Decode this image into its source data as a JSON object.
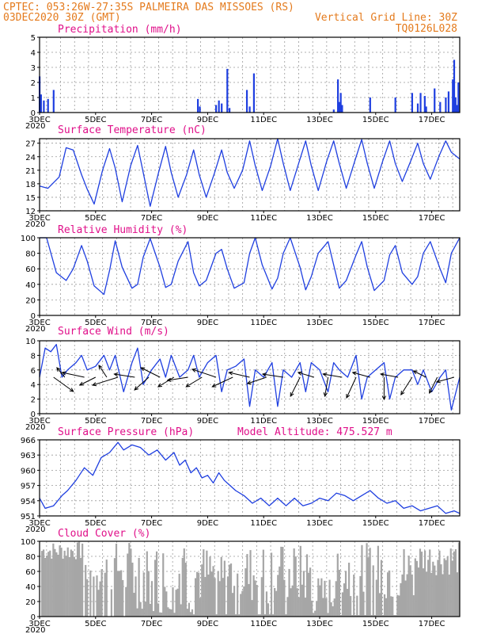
{
  "header": {
    "line1_left": "CPTEC:  053:26W-27:35S  PALMEIRA DAS MISSOES (RS)",
    "line2_left": "03DEC2020 30Z (GMT)",
    "line2_right": "Vertical Grid Line: 30Z",
    "line3_right": "TQ0126L028"
  },
  "colors": {
    "header": "#e47a1c",
    "title": "#e0108a",
    "line": "#1f3fe0",
    "cloud": "#a6a6a6",
    "arrow": "#000000"
  },
  "x_axis": {
    "start": "03DEC2020",
    "end": "18DEC2020",
    "tick_labels": [
      "3DEC",
      "5DEC",
      "7DEC",
      "9DEC",
      "11DEC",
      "13DEC",
      "15DEC",
      "17DEC"
    ],
    "tick_days": [
      3,
      5,
      7,
      9,
      11,
      13,
      15,
      17
    ],
    "year_label": "2020"
  },
  "chart_data": [
    {
      "type": "bar",
      "title": "Precipitation (mm/h)",
      "ylim": [
        0,
        5
      ],
      "yticks": [
        0,
        1,
        2,
        3,
        4,
        5
      ],
      "x_days": [
        3.0,
        3.05,
        3.15,
        3.3,
        3.5,
        8.65,
        8.72,
        9.3,
        9.4,
        9.5,
        9.7,
        9.78,
        10.4,
        10.5,
        10.65,
        13.5,
        13.65,
        13.7,
        13.75,
        13.8,
        14.8,
        15.7,
        16.3,
        16.5,
        16.6,
        16.75,
        16.8,
        17.1,
        17.3,
        17.5,
        17.6,
        17.75,
        17.8,
        17.85,
        17.9,
        17.95
      ],
      "values": [
        2.4,
        1.2,
        0.8,
        0.9,
        1.5,
        0.9,
        0.4,
        0.5,
        0.8,
        0.6,
        2.9,
        0.3,
        1.5,
        0.4,
        2.6,
        0.2,
        2.2,
        0.7,
        1.3,
        0.5,
        1.0,
        1.0,
        1.3,
        0.6,
        1.3,
        1.1,
        0.4,
        1.6,
        0.7,
        1.0,
        1.4,
        2.2,
        3.5,
        1.0,
        0.5,
        2.0
      ]
    },
    {
      "type": "line",
      "title": "Surface Temperature (nC)",
      "ylim": [
        12,
        28
      ],
      "yticks": [
        12,
        15,
        18,
        21,
        24,
        27
      ],
      "x_days": [
        3.0,
        3.3,
        3.7,
        3.95,
        4.2,
        4.5,
        4.7,
        4.95,
        5.25,
        5.5,
        5.7,
        5.95,
        6.25,
        6.5,
        6.7,
        6.95,
        7.25,
        7.5,
        7.7,
        7.95,
        8.25,
        8.5,
        8.7,
        8.95,
        9.25,
        9.5,
        9.7,
        9.95,
        10.25,
        10.5,
        10.7,
        10.95,
        11.25,
        11.5,
        11.7,
        11.95,
        12.25,
        12.5,
        12.7,
        12.95,
        13.25,
        13.5,
        13.7,
        13.95,
        14.25,
        14.5,
        14.7,
        14.95,
        15.25,
        15.5,
        15.7,
        15.95,
        16.25,
        16.5,
        16.7,
        16.95,
        17.25,
        17.5,
        17.7,
        18.0
      ],
      "values": [
        17.5,
        17.0,
        19.5,
        26.0,
        25.5,
        20.0,
        16.8,
        13.5,
        21.0,
        25.8,
        21.5,
        14.0,
        22.0,
        26.5,
        20.5,
        13.0,
        20.5,
        26.3,
        20.5,
        15.0,
        20.0,
        25.5,
        20.0,
        15.0,
        20.5,
        25.5,
        20.5,
        17.0,
        21.0,
        27.5,
        22.0,
        16.5,
        22.0,
        28.0,
        22.5,
        16.5,
        22.5,
        27.5,
        22.0,
        16.5,
        23.0,
        27.5,
        22.5,
        17.0,
        23.0,
        27.8,
        22.5,
        17.0,
        23.0,
        27.5,
        22.5,
        18.5,
        23.0,
        27.0,
        22.5,
        19.0,
        24.0,
        27.5,
        25.0,
        23.5
      ]
    },
    {
      "type": "line",
      "title": "Relative Humidity (%)",
      "ylim": [
        0,
        100
      ],
      "yticks": [
        0,
        20,
        40,
        60,
        80,
        100
      ],
      "x_days": [
        3.0,
        3.25,
        3.6,
        3.95,
        4.2,
        4.5,
        4.7,
        4.95,
        5.3,
        5.5,
        5.7,
        5.95,
        6.3,
        6.5,
        6.7,
        6.95,
        7.3,
        7.5,
        7.7,
        7.95,
        8.3,
        8.5,
        8.7,
        8.95,
        9.3,
        9.5,
        9.7,
        9.95,
        10.3,
        10.5,
        10.7,
        10.95,
        11.3,
        11.5,
        11.7,
        11.95,
        12.3,
        12.5,
        12.7,
        12.95,
        13.3,
        13.5,
        13.7,
        13.95,
        14.3,
        14.5,
        14.7,
        14.95,
        15.3,
        15.5,
        15.7,
        15.95,
        16.3,
        16.5,
        16.7,
        16.95,
        17.3,
        17.5,
        17.7,
        18.0
      ],
      "values": [
        100,
        100,
        55,
        45,
        60,
        90,
        70,
        38,
        27,
        58,
        96,
        62,
        35,
        40,
        75,
        99,
        62,
        36,
        40,
        70,
        95,
        55,
        38,
        45,
        80,
        85,
        60,
        35,
        42,
        80,
        100,
        65,
        34,
        48,
        80,
        100,
        62,
        33,
        50,
        80,
        95,
        65,
        35,
        45,
        78,
        95,
        62,
        32,
        45,
        78,
        90,
        55,
        40,
        50,
        80,
        95,
        60,
        42,
        80,
        100
      ]
    },
    {
      "type": "line",
      "title": "Surface Wind (m/s)",
      "ylim": [
        0,
        10
      ],
      "yticks": [
        0,
        2,
        4,
        6,
        8,
        10
      ],
      "x_days": [
        3.0,
        3.2,
        3.4,
        3.6,
        3.8,
        4.0,
        4.3,
        4.5,
        4.7,
        5.0,
        5.3,
        5.5,
        5.7,
        6.0,
        6.3,
        6.5,
        6.7,
        7.0,
        7.3,
        7.5,
        7.7,
        8.0,
        8.3,
        8.5,
        8.7,
        9.0,
        9.3,
        9.5,
        9.7,
        10.0,
        10.3,
        10.5,
        10.7,
        11.0,
        11.3,
        11.5,
        11.7,
        12.0,
        12.3,
        12.5,
        12.7,
        13.0,
        13.3,
        13.5,
        13.7,
        14.0,
        14.3,
        14.5,
        14.7,
        15.0,
        15.3,
        15.5,
        15.7,
        16.0,
        16.3,
        16.5,
        16.7,
        17.0,
        17.3,
        17.5,
        17.7,
        18.0
      ],
      "values": [
        5,
        9,
        8.5,
        9.5,
        5,
        6,
        7,
        8,
        6,
        6.5,
        8,
        6,
        8,
        3,
        7,
        9,
        4,
        6,
        7.5,
        5,
        8,
        5,
        6,
        8,
        5,
        7,
        8,
        3,
        6,
        6.5,
        7.5,
        1,
        6,
        5,
        7,
        1,
        6,
        5,
        7,
        3,
        7,
        6,
        3,
        7,
        6,
        5,
        8,
        2,
        5,
        6,
        7,
        2,
        5,
        6,
        6,
        4,
        6,
        3,
        5,
        6,
        0.5,
        5
      ],
      "arrows": [
        {
          "day": 3.5,
          "dx": 25,
          "dy": 18
        },
        {
          "day": 3.9,
          "dx": -10,
          "dy": -12
        },
        {
          "day": 4.6,
          "dx": -28,
          "dy": -6
        },
        {
          "day": 5.0,
          "dx": -20,
          "dy": 10
        },
        {
          "day": 5.4,
          "dx": -10,
          "dy": -15
        },
        {
          "day": 5.8,
          "dx": -32,
          "dy": 10
        },
        {
          "day": 6.4,
          "dx": -26,
          "dy": -4
        },
        {
          "day": 6.9,
          "dx": -18,
          "dy": 16
        },
        {
          "day": 7.3,
          "dx": -24,
          "dy": -12
        },
        {
          "day": 7.8,
          "dx": -20,
          "dy": 12
        },
        {
          "day": 8.3,
          "dx": -26,
          "dy": 4
        },
        {
          "day": 8.8,
          "dx": -20,
          "dy": 12
        },
        {
          "day": 9.3,
          "dx": -30,
          "dy": -10
        },
        {
          "day": 9.9,
          "dx": -26,
          "dy": 12
        },
        {
          "day": 10.5,
          "dx": -26,
          "dy": -6
        },
        {
          "day": 11.1,
          "dx": -24,
          "dy": 8
        },
        {
          "day": 11.7,
          "dx": -26,
          "dy": -4
        },
        {
          "day": 12.3,
          "dx": -12,
          "dy": 24
        },
        {
          "day": 12.8,
          "dx": -20,
          "dy": -6
        },
        {
          "day": 13.3,
          "dx": -4,
          "dy": 24
        },
        {
          "day": 13.8,
          "dx": -24,
          "dy": -4
        },
        {
          "day": 14.3,
          "dx": -12,
          "dy": 26
        },
        {
          "day": 14.8,
          "dx": -22,
          "dy": -6
        },
        {
          "day": 15.3,
          "dx": 0,
          "dy": 28
        },
        {
          "day": 15.8,
          "dx": -22,
          "dy": -4
        },
        {
          "day": 16.3,
          "dx": -14,
          "dy": 22
        },
        {
          "day": 16.8,
          "dx": -16,
          "dy": -8
        },
        {
          "day": 17.2,
          "dx": -10,
          "dy": 20
        },
        {
          "day": 17.8,
          "dx": -22,
          "dy": 6
        }
      ]
    },
    {
      "type": "line",
      "title": "Surface Pressure (hPa)",
      "subtitle": "Model Altitude: 475.527 m",
      "ylim": [
        951,
        966
      ],
      "yticks": [
        951,
        954,
        957,
        960,
        963,
        966
      ],
      "x_days": [
        3.0,
        3.2,
        3.5,
        3.8,
        4.0,
        4.3,
        4.6,
        4.9,
        5.2,
        5.5,
        5.8,
        6.0,
        6.3,
        6.6,
        6.9,
        7.2,
        7.5,
        7.8,
        8.0,
        8.2,
        8.4,
        8.6,
        8.8,
        9.0,
        9.2,
        9.4,
        9.6,
        9.8,
        10.0,
        10.3,
        10.6,
        10.9,
        11.2,
        11.5,
        11.8,
        12.1,
        12.4,
        12.7,
        13.0,
        13.3,
        13.6,
        13.9,
        14.2,
        14.5,
        14.8,
        15.1,
        15.4,
        15.7,
        16.0,
        16.3,
        16.6,
        16.9,
        17.2,
        17.5,
        17.8,
        18.0
      ],
      "values": [
        954.5,
        952.5,
        953,
        955,
        956,
        958,
        960.5,
        959,
        962.5,
        963.5,
        965.5,
        964,
        965,
        964.5,
        963,
        964,
        962,
        963.5,
        961,
        962,
        959.5,
        960.5,
        958.5,
        959,
        957.5,
        959.5,
        958,
        957,
        956,
        955,
        953.5,
        954.5,
        953,
        954.5,
        953,
        954.5,
        953,
        953.5,
        954.5,
        954,
        955.5,
        955,
        954,
        955,
        956,
        954.5,
        953.5,
        954,
        952.5,
        953,
        952,
        952.5,
        953,
        951.5,
        952,
        951.5
      ]
    },
    {
      "type": "bar",
      "title": "Cloud Cover (%)",
      "ylim": [
        0,
        100
      ],
      "yticks": [
        0,
        20,
        40,
        60,
        80,
        100
      ]
    }
  ]
}
